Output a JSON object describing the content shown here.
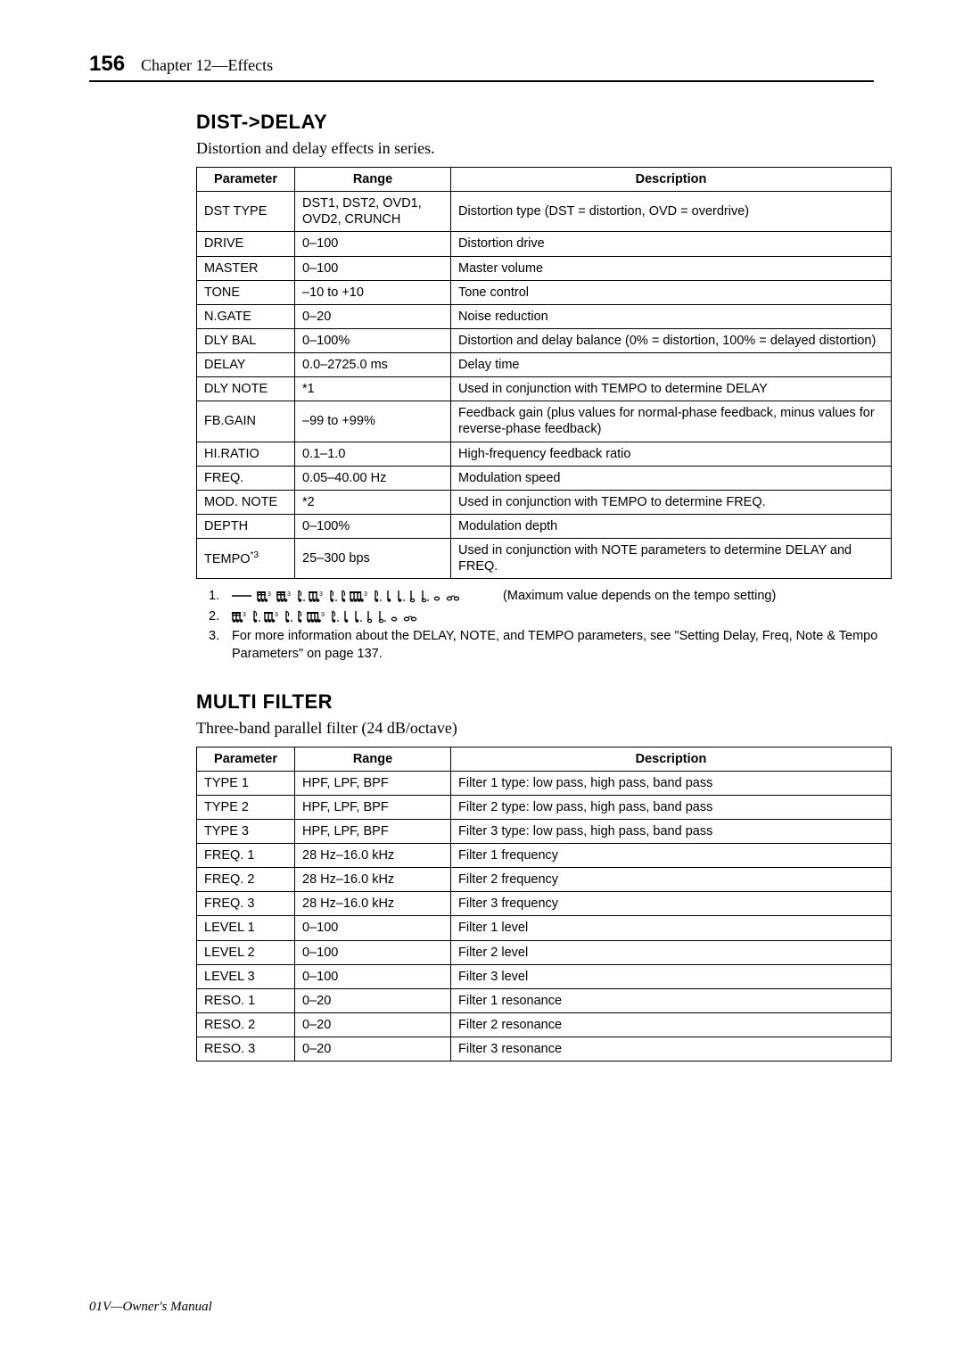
{
  "page_number": "156",
  "chapter": "Chapter 12—Effects",
  "section1": {
    "title": "DIST->DELAY",
    "subtitle": "Distortion and delay effects in series.",
    "columns": [
      "Parameter",
      "Range",
      "Description"
    ],
    "rows": [
      [
        "DST TYPE",
        "DST1, DST2, OVD1, OVD2, CRUNCH",
        "Distortion type (DST = distortion, OVD = overdrive)"
      ],
      [
        "DRIVE",
        "0–100",
        "Distortion drive"
      ],
      [
        "MASTER",
        "0–100",
        "Master volume"
      ],
      [
        "TONE",
        "–10 to +10",
        "Tone control"
      ],
      [
        "N.GATE",
        "0–20",
        "Noise reduction"
      ],
      [
        "DLY BAL",
        "0–100%",
        "Distortion and delay balance (0% = distortion, 100% = delayed distortion)"
      ],
      [
        "DELAY",
        "0.0–2725.0 ms",
        "Delay time"
      ],
      [
        "DLY NOTE",
        "*1",
        "Used in conjunction with TEMPO to determine DELAY"
      ],
      [
        "FB.GAIN",
        "–99 to +99%",
        "Feedback gain (plus values for normal-phase feedback, minus values for reverse-phase feedback)"
      ],
      [
        "HI.RATIO",
        "0.1–1.0",
        "High-frequency feedback ratio"
      ],
      [
        "FREQ.",
        "0.05–40.00 Hz",
        "Modulation speed"
      ],
      [
        "MOD. NOTE",
        "*2",
        "Used in conjunction with TEMPO to determine FREQ."
      ],
      [
        "DEPTH",
        "0–100%",
        "Modulation depth"
      ],
      [
        "TEMPO*3",
        "25–300 bps",
        "Used in conjunction with NOTE parameters to determine DELAY and FREQ."
      ]
    ]
  },
  "notes": {
    "n1_suffix": " (Maximum value depends on the tempo setting)",
    "n3": "For more information about the DELAY, NOTE, and TEMPO parameters, see \"Setting Delay, Freq, Note & Tempo Parameters\" on page 137."
  },
  "section2": {
    "title": "MULTI FILTER",
    "subtitle": "Three-band parallel filter (24 dB/octave)",
    "columns": [
      "Parameter",
      "Range",
      "Description"
    ],
    "rows": [
      [
        "TYPE 1",
        "HPF, LPF, BPF",
        "Filter 1 type: low pass, high pass, band pass"
      ],
      [
        "TYPE 2",
        "HPF, LPF, BPF",
        "Filter 2 type: low pass, high pass, band pass"
      ],
      [
        "TYPE 3",
        "HPF, LPF, BPF",
        "Filter 3 type: low pass, high pass, band pass"
      ],
      [
        "FREQ. 1",
        "28 Hz–16.0 kHz",
        "Filter 1 frequency"
      ],
      [
        "FREQ. 2",
        "28 Hz–16.0 kHz",
        "Filter 2 frequency"
      ],
      [
        "FREQ. 3",
        "28 Hz–16.0 kHz",
        "Filter 3 frequency"
      ],
      [
        "LEVEL 1",
        "0–100",
        "Filter 1 level"
      ],
      [
        "LEVEL 2",
        "0–100",
        "Filter 2 level"
      ],
      [
        "LEVEL 3",
        "0–100",
        "Filter 3 level"
      ],
      [
        "RESO. 1",
        "0–20",
        "Filter 1 resonance"
      ],
      [
        "RESO. 2",
        "0–20",
        "Filter 2 resonance"
      ],
      [
        "RESO. 3",
        "0–20",
        "Filter 3 resonance"
      ]
    ]
  },
  "footer": "01V—Owner's Manual"
}
